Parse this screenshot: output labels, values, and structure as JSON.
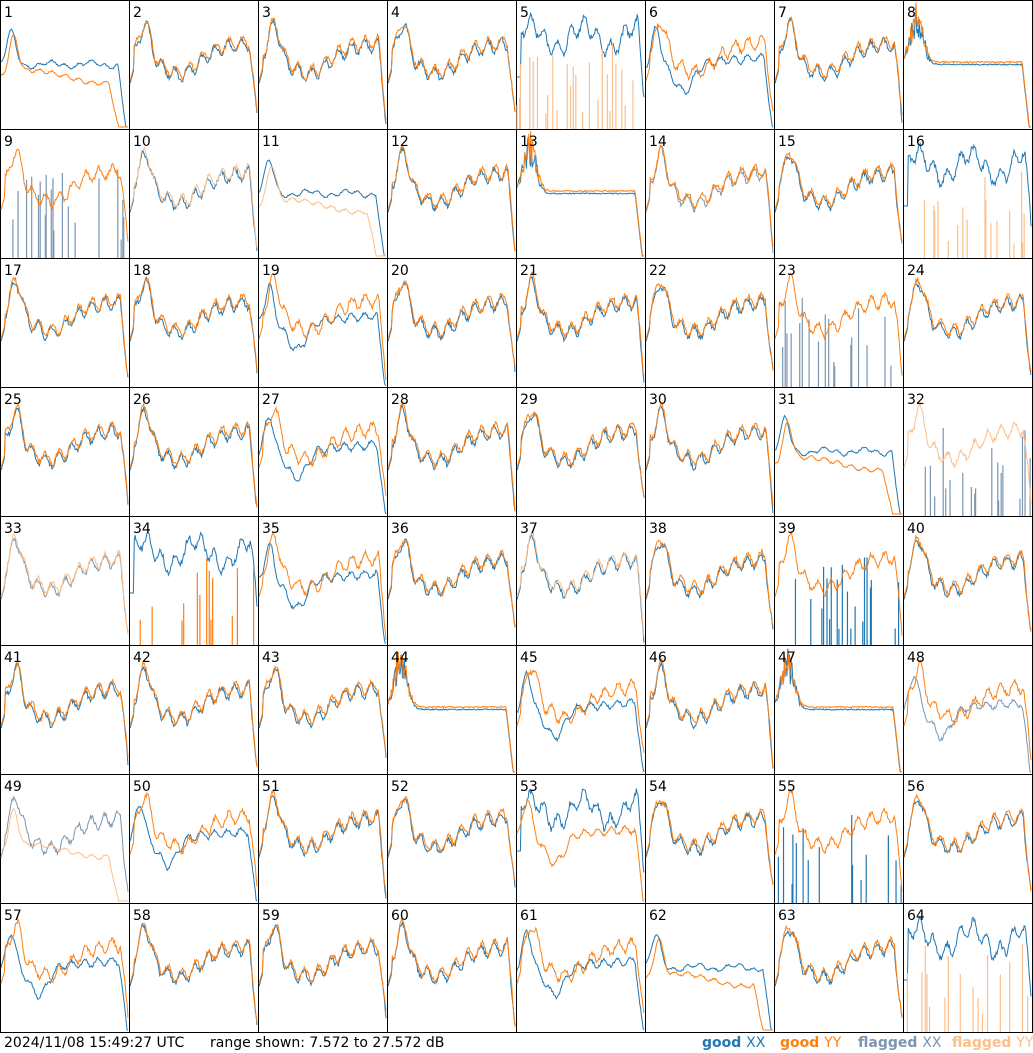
{
  "footer": {
    "timestamp": "2024/11/08 15:49:27 UTC",
    "range_text": "range shown: 7.572 to 27.572 dB"
  },
  "legend": [
    {
      "word": "good",
      "pol": "XX",
      "color": "#1f77b4"
    },
    {
      "word": "good",
      "pol": "YY",
      "color": "#ff7f0e"
    },
    {
      "word": "flagged",
      "pol": "XX",
      "color": "#7a96b1"
    },
    {
      "word": "flagged",
      "pol": "YY",
      "color": "#fdbf8a"
    }
  ],
  "colors": {
    "good_xx": "#1f77b4",
    "good_yy": "#ff7f0e",
    "flagged_xx": "#7a96b1",
    "flagged_yy": "#fdbf8a"
  },
  "chart_data": {
    "type": "line",
    "ylim": [
      7.572,
      27.572
    ],
    "grid": {
      "rows": 8,
      "cols": 8
    },
    "tiles": [
      {
        "label": "1",
        "xx": "good",
        "yy": "good",
        "xx_profile": "mid",
        "yy_profile": "drop"
      },
      {
        "label": "2",
        "xx": "good",
        "yy": "good",
        "xx_profile": "std",
        "yy_profile": "std"
      },
      {
        "label": "3",
        "xx": "good",
        "yy": "good",
        "xx_profile": "std",
        "yy_profile": "std"
      },
      {
        "label": "4",
        "xx": "good",
        "yy": "good",
        "xx_profile": "std",
        "yy_profile": "std"
      },
      {
        "label": "5",
        "xx": "good",
        "yy": "flagged",
        "xx_profile": "high",
        "yy_profile": "spikes"
      },
      {
        "label": "6",
        "xx": "good",
        "yy": "good",
        "xx_profile": "dip",
        "yy_profile": "std"
      },
      {
        "label": "7",
        "xx": "good",
        "yy": "good",
        "xx_profile": "std",
        "yy_profile": "std"
      },
      {
        "label": "8",
        "xx": "good",
        "yy": "good",
        "xx_profile": "flat",
        "yy_profile": "flat"
      },
      {
        "label": "9",
        "xx": "flagged",
        "yy": "good",
        "xx_profile": "spikes",
        "yy_profile": "std"
      },
      {
        "label": "10",
        "xx": "good",
        "yy": "flagged",
        "xx_profile": "std",
        "yy_profile": "std"
      },
      {
        "label": "11",
        "xx": "good",
        "yy": "flagged",
        "xx_profile": "mid",
        "yy_profile": "drop"
      },
      {
        "label": "12",
        "xx": "good",
        "yy": "good",
        "xx_profile": "std",
        "yy_profile": "std"
      },
      {
        "label": "13",
        "xx": "good",
        "yy": "good",
        "xx_profile": "flat",
        "yy_profile": "flat"
      },
      {
        "label": "14",
        "xx": "flagged",
        "yy": "good",
        "xx_profile": "std",
        "yy_profile": "std"
      },
      {
        "label": "15",
        "xx": "good",
        "yy": "good",
        "xx_profile": "std",
        "yy_profile": "std"
      },
      {
        "label": "16",
        "xx": "good",
        "yy": "flagged",
        "xx_profile": "high",
        "yy_profile": "spikes"
      },
      {
        "label": "17",
        "xx": "good",
        "yy": "good",
        "xx_profile": "std",
        "yy_profile": "std"
      },
      {
        "label": "18",
        "xx": "good",
        "yy": "good",
        "xx_profile": "std",
        "yy_profile": "std"
      },
      {
        "label": "19",
        "xx": "good",
        "yy": "good",
        "xx_profile": "dip",
        "yy_profile": "std"
      },
      {
        "label": "20",
        "xx": "good",
        "yy": "good",
        "xx_profile": "std",
        "yy_profile": "std"
      },
      {
        "label": "21",
        "xx": "good",
        "yy": "good",
        "xx_profile": "std",
        "yy_profile": "std"
      },
      {
        "label": "22",
        "xx": "good",
        "yy": "good",
        "xx_profile": "std",
        "yy_profile": "std"
      },
      {
        "label": "23",
        "xx": "flagged",
        "yy": "good",
        "xx_profile": "spikes",
        "yy_profile": "std"
      },
      {
        "label": "24",
        "xx": "good",
        "yy": "good",
        "xx_profile": "std",
        "yy_profile": "std"
      },
      {
        "label": "25",
        "xx": "good",
        "yy": "good",
        "xx_profile": "std",
        "yy_profile": "std"
      },
      {
        "label": "26",
        "xx": "good",
        "yy": "good",
        "xx_profile": "std",
        "yy_profile": "std"
      },
      {
        "label": "27",
        "xx": "good",
        "yy": "good",
        "xx_profile": "dip",
        "yy_profile": "std"
      },
      {
        "label": "28",
        "xx": "good",
        "yy": "good",
        "xx_profile": "std",
        "yy_profile": "std"
      },
      {
        "label": "29",
        "xx": "good",
        "yy": "good",
        "xx_profile": "std",
        "yy_profile": "std"
      },
      {
        "label": "30",
        "xx": "good",
        "yy": "good",
        "xx_profile": "std",
        "yy_profile": "std"
      },
      {
        "label": "31",
        "xx": "good",
        "yy": "good",
        "xx_profile": "mid",
        "yy_profile": "drop"
      },
      {
        "label": "32",
        "xx": "flagged",
        "yy": "flagged",
        "xx_profile": "spikes",
        "yy_profile": "std"
      },
      {
        "label": "33",
        "xx": "flagged",
        "yy": "flagged",
        "xx_profile": "std",
        "yy_profile": "std"
      },
      {
        "label": "34",
        "xx": "good",
        "yy": "good",
        "xx_profile": "high",
        "yy_profile": "spikes"
      },
      {
        "label": "35",
        "xx": "good",
        "yy": "good",
        "xx_profile": "dip",
        "yy_profile": "std"
      },
      {
        "label": "36",
        "xx": "good",
        "yy": "good",
        "xx_profile": "std",
        "yy_profile": "std"
      },
      {
        "label": "37",
        "xx": "good",
        "yy": "flagged",
        "xx_profile": "std",
        "yy_profile": "std"
      },
      {
        "label": "38",
        "xx": "good",
        "yy": "good",
        "xx_profile": "std",
        "yy_profile": "std"
      },
      {
        "label": "39",
        "xx": "good",
        "yy": "good",
        "xx_profile": "spikes",
        "yy_profile": "std"
      },
      {
        "label": "40",
        "xx": "good",
        "yy": "good",
        "xx_profile": "std",
        "yy_profile": "std"
      },
      {
        "label": "41",
        "xx": "good",
        "yy": "good",
        "xx_profile": "std",
        "yy_profile": "std"
      },
      {
        "label": "42",
        "xx": "good",
        "yy": "good",
        "xx_profile": "std",
        "yy_profile": "std"
      },
      {
        "label": "43",
        "xx": "good",
        "yy": "good",
        "xx_profile": "std",
        "yy_profile": "std"
      },
      {
        "label": "44",
        "xx": "good",
        "yy": "good",
        "xx_profile": "flat",
        "yy_profile": "flat"
      },
      {
        "label": "45",
        "xx": "good",
        "yy": "good",
        "xx_profile": "dip",
        "yy_profile": "std"
      },
      {
        "label": "46",
        "xx": "good",
        "yy": "good",
        "xx_profile": "std",
        "yy_profile": "std"
      },
      {
        "label": "47",
        "xx": "good",
        "yy": "good",
        "xx_profile": "flat",
        "yy_profile": "flat"
      },
      {
        "label": "48",
        "xx": "flagged",
        "yy": "good",
        "xx_profile": "dip",
        "yy_profile": "std"
      },
      {
        "label": "49",
        "xx": "flagged",
        "yy": "flagged",
        "xx_profile": "std",
        "yy_profile": "drop"
      },
      {
        "label": "50",
        "xx": "good",
        "yy": "good",
        "xx_profile": "dip",
        "yy_profile": "std"
      },
      {
        "label": "51",
        "xx": "good",
        "yy": "good",
        "xx_profile": "std",
        "yy_profile": "std"
      },
      {
        "label": "52",
        "xx": "good",
        "yy": "good",
        "xx_profile": "std",
        "yy_profile": "std"
      },
      {
        "label": "53",
        "xx": "good",
        "yy": "good",
        "xx_profile": "high",
        "yy_profile": "dip"
      },
      {
        "label": "54",
        "xx": "good",
        "yy": "good",
        "xx_profile": "std",
        "yy_profile": "std"
      },
      {
        "label": "55",
        "xx": "good",
        "yy": "good",
        "xx_profile": "spikes",
        "yy_profile": "std"
      },
      {
        "label": "56",
        "xx": "good",
        "yy": "good",
        "xx_profile": "std",
        "yy_profile": "std"
      },
      {
        "label": "57",
        "xx": "good",
        "yy": "good",
        "xx_profile": "dip",
        "yy_profile": "std"
      },
      {
        "label": "58",
        "xx": "good",
        "yy": "good",
        "xx_profile": "std",
        "yy_profile": "std"
      },
      {
        "label": "59",
        "xx": "good",
        "yy": "good",
        "xx_profile": "std",
        "yy_profile": "std"
      },
      {
        "label": "60",
        "xx": "good",
        "yy": "good",
        "xx_profile": "std",
        "yy_profile": "std"
      },
      {
        "label": "61",
        "xx": "good",
        "yy": "good",
        "xx_profile": "dip",
        "yy_profile": "std"
      },
      {
        "label": "62",
        "xx": "good",
        "yy": "good",
        "xx_profile": "mid",
        "yy_profile": "drop"
      },
      {
        "label": "63",
        "xx": "good",
        "yy": "good",
        "xx_profile": "std",
        "yy_profile": "std"
      },
      {
        "label": "64",
        "xx": "good",
        "yy": "flagged",
        "xx_profile": "high",
        "yy_profile": "spikes"
      }
    ]
  }
}
